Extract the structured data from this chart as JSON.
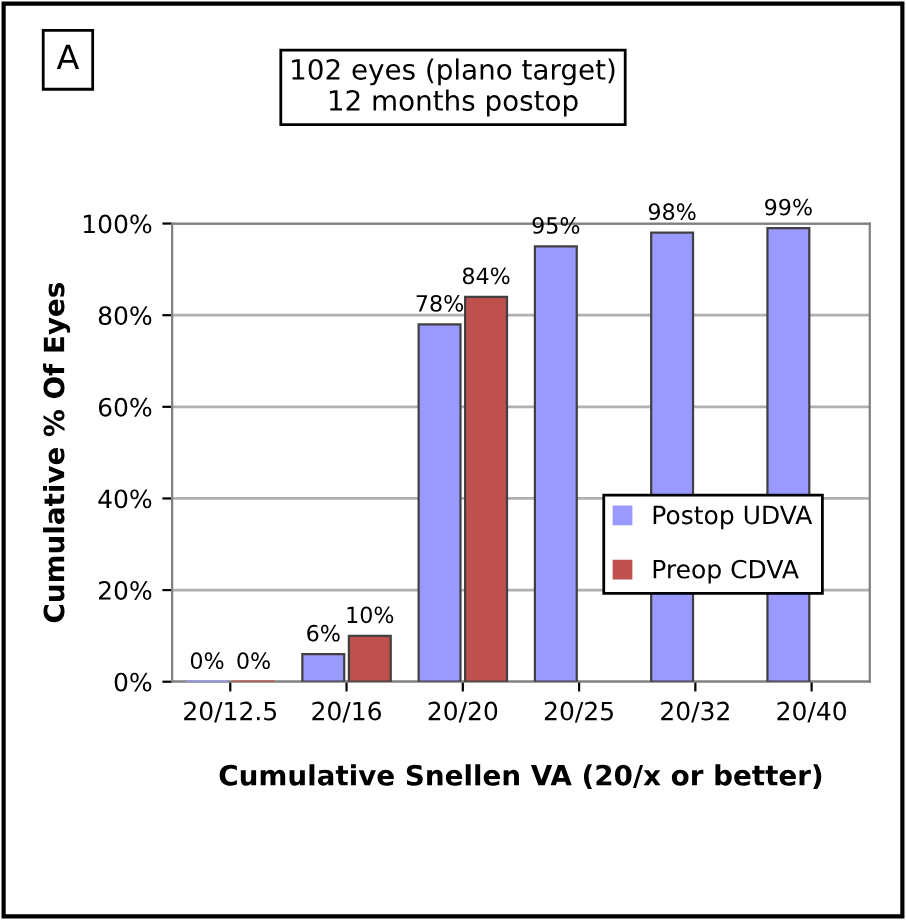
{
  "chart_data": {
    "type": "bar",
    "title": "102 eyes (plano target)\n12 months postop",
    "xlabel": "Cumulative Snellen VA (20/x or better)",
    "ylabel": "Cumulative % Of Eyes",
    "annotations": [
      "A"
    ],
    "categories": [
      "20/12.5",
      "20/16",
      "20/20",
      "20/25",
      "20/32",
      "20/40"
    ],
    "series": [
      {
        "name": "Postop UDVA",
        "color": "#9999ff",
        "values": [
          0,
          6,
          78,
          95,
          98,
          99
        ],
        "value_labels": [
          "0%",
          "6%",
          "78%",
          "95%",
          "98%",
          "99%"
        ]
      },
      {
        "name": "Preop CDVA",
        "color": "#c0504d",
        "values": [
          0,
          10,
          84,
          null,
          null,
          null
        ],
        "value_labels": [
          "0%",
          "10%",
          "84%",
          null,
          null,
          null
        ]
      }
    ],
    "ylim": [
      0,
      100
    ],
    "yticks": [
      {
        "value": 0,
        "label": "0%"
      },
      {
        "value": 20,
        "label": "20%"
      },
      {
        "value": 40,
        "label": "40%"
      },
      {
        "value": 60,
        "label": "60%"
      },
      {
        "value": 80,
        "label": "80%"
      },
      {
        "value": 100,
        "label": "100%"
      }
    ],
    "grid": "y",
    "legend": "right"
  }
}
